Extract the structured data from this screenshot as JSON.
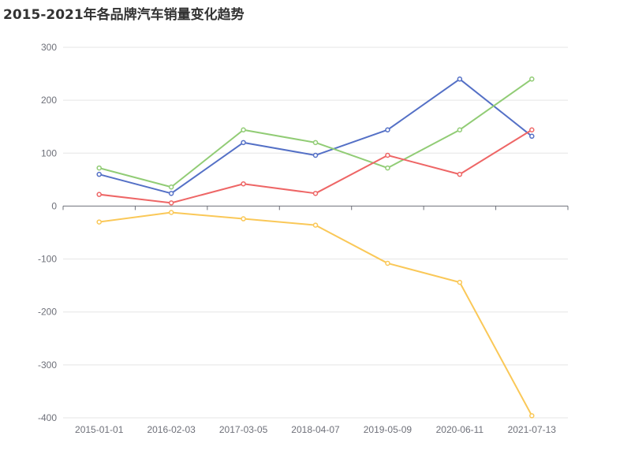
{
  "chart_data": {
    "type": "line",
    "title": "2015-2021年各品牌汽车销量变化趋势",
    "categories": [
      "2015-01-01",
      "2016-02-03",
      "2017-03-05",
      "2018-04-07",
      "2019-05-09",
      "2020-06-11",
      "2021-07-13"
    ],
    "ylim": [
      -400,
      300
    ],
    "yticks": [
      "300",
      "200",
      "100",
      "0",
      "-100",
      "-200",
      "-300",
      "-400"
    ],
    "grid": true,
    "legend": "none",
    "series": [
      {
        "color": "#5470c6",
        "values": [
          60,
          24,
          120,
          96,
          144,
          240,
          132
        ]
      },
      {
        "color": "#91cc75",
        "values": [
          72,
          36,
          144,
          120,
          72,
          144,
          240
        ]
      },
      {
        "color": "#ee6666",
        "values": [
          22,
          6,
          42,
          24,
          96,
          60,
          144
        ]
      },
      {
        "color": "#fac858",
        "values": [
          -30,
          -12,
          -24,
          -36,
          -108,
          -144,
          -396
        ]
      }
    ]
  }
}
